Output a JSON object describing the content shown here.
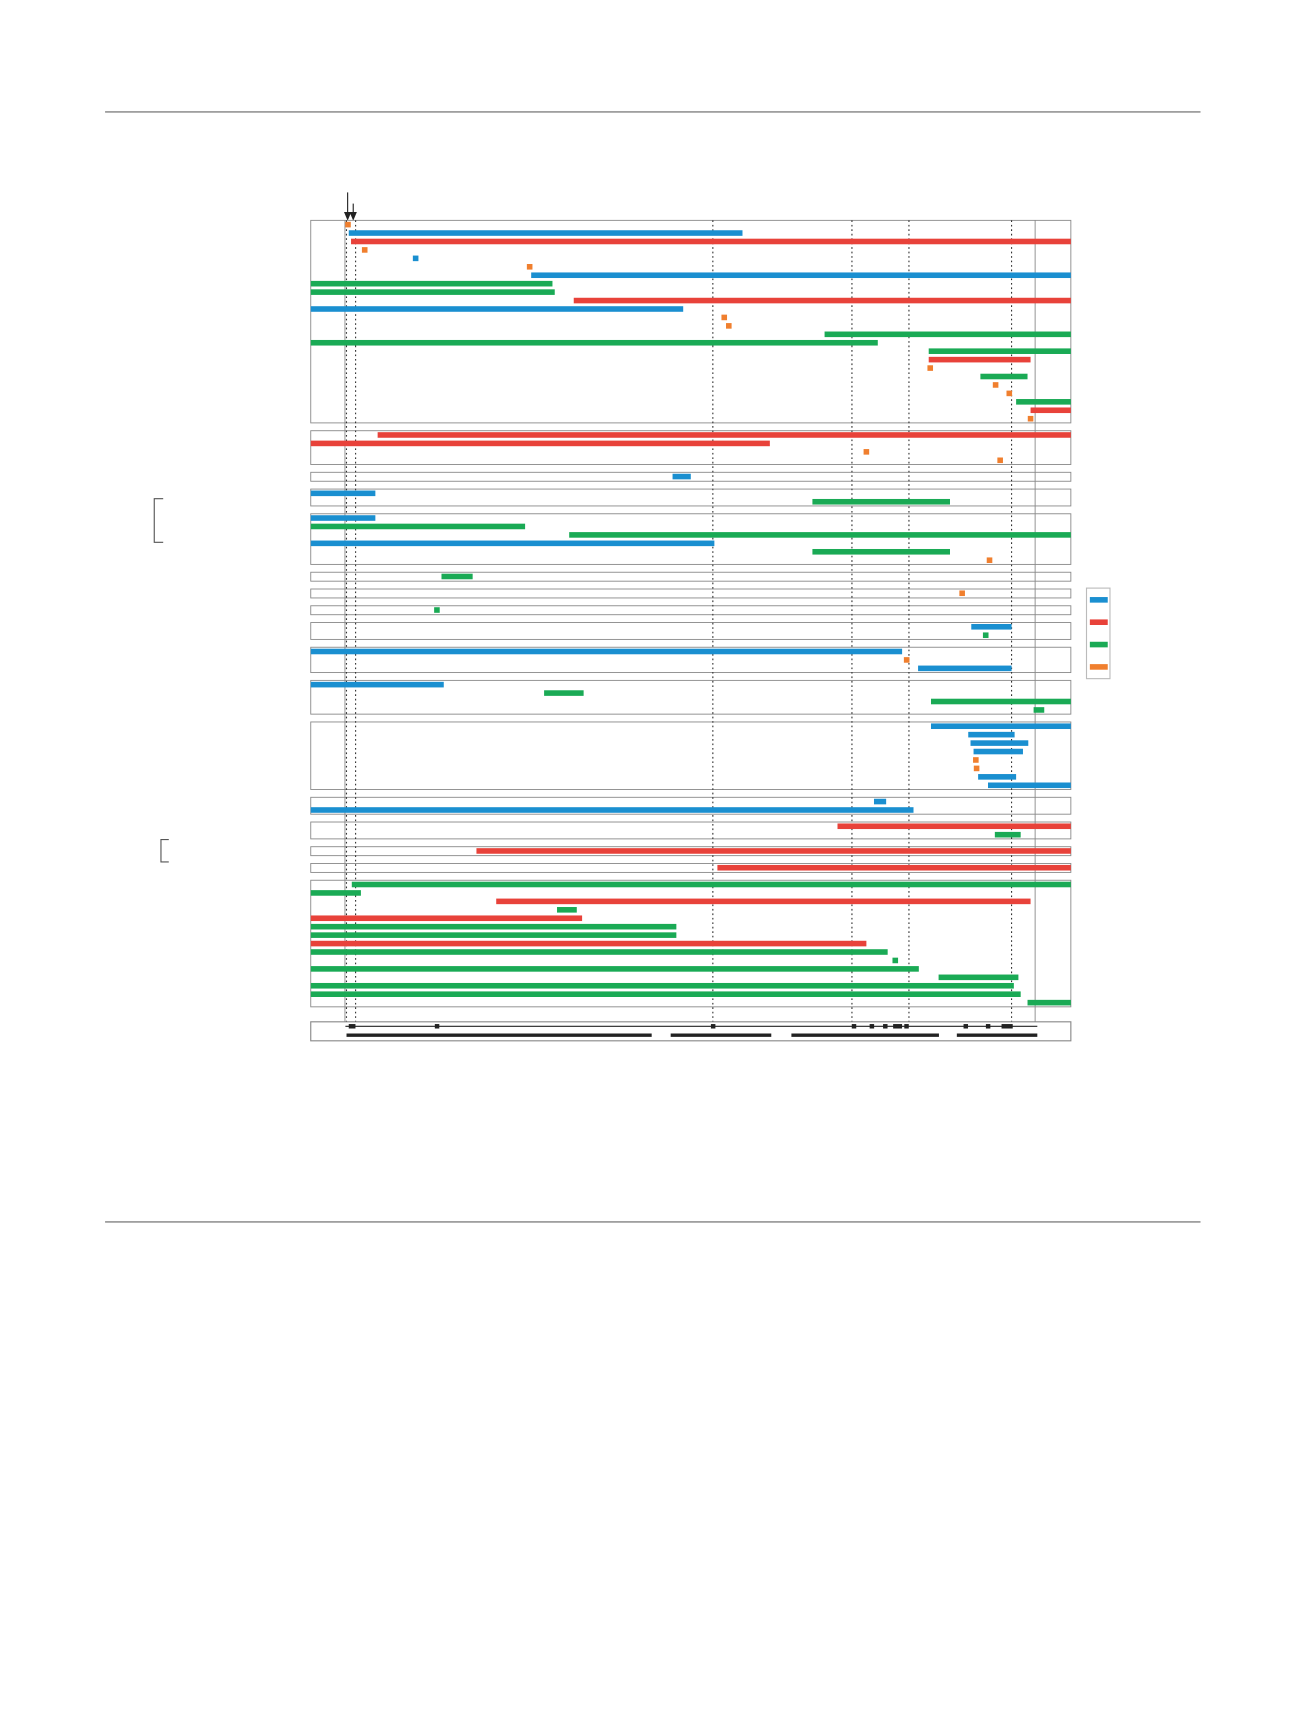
{
  "chart_data": {
    "type": "segments",
    "xlim": [
      0,
      100
    ],
    "legend_colors": [
      "#1a8fd0",
      "#e8423a",
      "#1aaa55",
      "#f07f2e"
    ],
    "markers_dotted": [
      4.7,
      5.9,
      52.9,
      71.2,
      78.7,
      92.2
    ],
    "markers_solid": [
      4.5,
      95.3
    ],
    "panels": [
      {
        "rows": 24,
        "bars": [
          [
            1,
            5.0,
            56.8,
            0
          ],
          [
            2,
            5.3,
            100,
            1
          ],
          [
            6,
            29.0,
            100,
            0
          ],
          [
            7,
            0,
            31.8,
            2
          ],
          [
            8,
            0,
            32.1,
            2
          ],
          [
            9,
            34.6,
            100,
            1
          ],
          [
            10,
            0,
            49.0,
            0
          ],
          [
            13,
            67.6,
            100,
            2
          ],
          [
            14,
            0,
            74.6,
            2
          ],
          [
            15,
            81.3,
            100,
            2
          ],
          [
            16,
            81.3,
            94.7,
            1
          ],
          [
            18,
            88.1,
            94.3,
            2
          ],
          [
            21,
            92.8,
            100,
            2
          ],
          [
            22,
            94.7,
            100,
            1
          ]
        ],
        "points": [
          [
            0,
            4.9,
            3
          ],
          [
            3,
            7.1,
            3
          ],
          [
            4,
            13.8,
            0
          ],
          [
            5,
            28.8,
            3
          ],
          [
            11,
            54.4,
            3
          ],
          [
            12,
            55.0,
            3
          ],
          [
            17,
            81.5,
            3
          ],
          [
            19,
            90.1,
            3
          ],
          [
            20,
            91.9,
            3
          ],
          [
            23,
            94.7,
            3
          ]
        ]
      },
      {
        "rows": 4,
        "bars": [
          [
            0,
            8.8,
            100,
            1
          ],
          [
            1,
            0,
            60.4,
            1
          ]
        ],
        "points": [
          [
            2,
            73.1,
            3
          ],
          [
            3,
            90.7,
            3
          ]
        ]
      },
      {
        "rows": 1,
        "bars": [
          [
            0,
            47.6,
            50.0,
            0
          ]
        ],
        "points": []
      },
      {
        "rows": 2,
        "bars": [
          [
            0,
            0,
            8.5,
            0
          ],
          [
            1,
            66.0,
            84.1,
            2
          ]
        ],
        "points": []
      },
      {
        "rows": 6,
        "bars": [
          [
            0,
            0,
            8.5,
            0
          ],
          [
            1,
            0,
            28.2,
            2
          ],
          [
            2,
            34.0,
            100,
            2
          ],
          [
            3,
            0,
            53.1,
            0
          ],
          [
            4,
            66.0,
            84.1,
            2
          ]
        ],
        "points": [
          [
            5,
            89.3,
            3
          ]
        ]
      },
      {
        "rows": 1,
        "bars": [
          [
            0,
            17.2,
            21.3,
            2
          ]
        ],
        "points": []
      },
      {
        "rows": 1,
        "bars": [],
        "points": [
          [
            0,
            85.7,
            3
          ]
        ]
      },
      {
        "rows": 1,
        "bars": [],
        "points": [
          [
            0,
            16.6,
            2
          ]
        ]
      },
      {
        "rows": 2,
        "bars": [
          [
            0,
            86.9,
            92.2,
            0
          ]
        ],
        "points": [
          [
            1,
            88.8,
            2
          ]
        ]
      },
      {
        "rows": 3,
        "bars": [
          [
            0,
            0,
            77.8,
            0
          ],
          [
            2,
            79.9,
            92.2,
            0
          ]
        ],
        "points": [
          [
            1,
            78.4,
            3
          ]
        ]
      },
      {
        "rows": 4,
        "bars": [
          [
            0,
            0,
            17.5,
            0
          ],
          [
            1,
            30.7,
            35.9,
            2
          ],
          [
            2,
            81.6,
            100,
            2
          ],
          [
            3,
            95.1,
            96.5,
            2
          ]
        ],
        "points": []
      },
      {
        "rows": 8,
        "bars": [
          [
            0,
            81.6,
            100,
            0
          ],
          [
            1,
            86.5,
            92.6,
            0
          ],
          [
            2,
            86.8,
            94.4,
            0
          ],
          [
            3,
            87.2,
            93.7,
            0
          ],
          [
            6,
            87.8,
            92.8,
            0
          ],
          [
            7,
            89.1,
            100,
            0
          ]
        ],
        "points": [
          [
            4,
            87.5,
            3
          ],
          [
            5,
            87.6,
            3
          ]
        ]
      },
      {
        "rows": 2,
        "bars": [
          [
            0,
            74.1,
            75.7,
            0
          ],
          [
            1,
            0,
            79.3,
            0
          ]
        ],
        "points": []
      },
      {
        "rows": 2,
        "bars": [
          [
            0,
            69.3,
            100,
            1
          ],
          [
            1,
            90.0,
            93.4,
            2
          ]
        ],
        "points": []
      },
      {
        "rows": 1,
        "bars": [
          [
            0,
            21.8,
            100,
            1
          ]
        ],
        "points": []
      },
      {
        "rows": 1,
        "bars": [
          [
            0,
            53.5,
            100,
            1
          ]
        ],
        "points": []
      },
      {
        "rows": 15,
        "bars": [
          [
            0,
            5.4,
            100,
            2
          ],
          [
            1,
            0,
            6.6,
            2
          ],
          [
            2,
            24.4,
            94.7,
            1
          ],
          [
            3,
            32.4,
            35.0,
            2
          ],
          [
            4,
            0,
            35.7,
            1
          ],
          [
            5,
            0,
            48.1,
            2
          ],
          [
            6,
            0,
            48.1,
            2
          ],
          [
            7,
            0,
            73.1,
            1
          ],
          [
            8,
            0,
            75.9,
            2
          ],
          [
            10,
            0,
            80.0,
            2
          ],
          [
            11,
            82.6,
            93.1,
            2
          ],
          [
            12,
            0,
            92.5,
            2
          ],
          [
            13,
            0,
            93.4,
            2
          ],
          [
            14,
            94.3,
            100,
            2
          ]
        ],
        "points": [
          [
            9,
            76.9,
            2
          ]
        ]
      }
    ]
  }
}
